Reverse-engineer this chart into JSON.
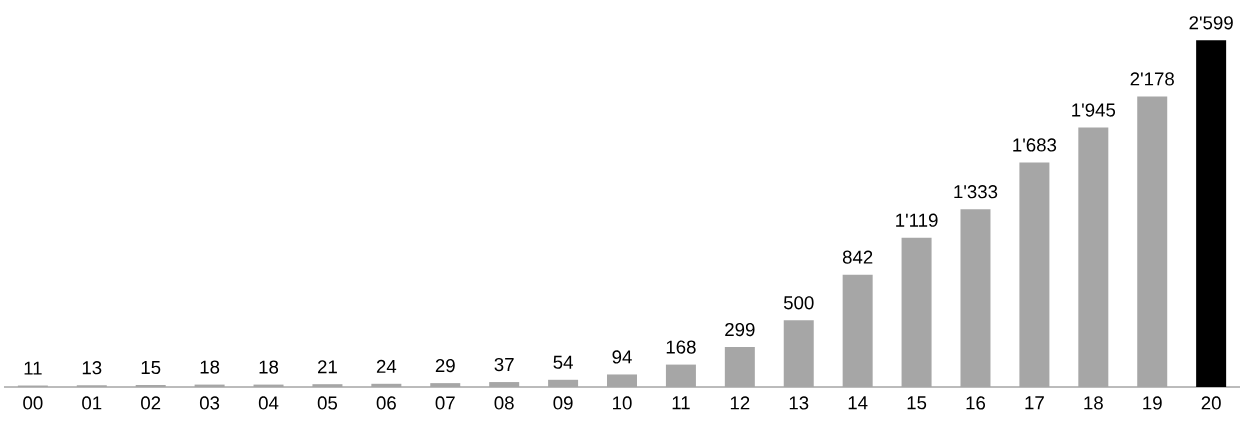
{
  "chart_data": {
    "type": "bar",
    "categories": [
      "00",
      "01",
      "02",
      "03",
      "04",
      "05",
      "06",
      "07",
      "08",
      "09",
      "10",
      "11",
      "12",
      "13",
      "14",
      "15",
      "16",
      "17",
      "18",
      "19",
      "20"
    ],
    "values": [
      11,
      13,
      15,
      18,
      18,
      21,
      24,
      29,
      37,
      54,
      94,
      168,
      299,
      500,
      842,
      1119,
      1333,
      1683,
      1945,
      2178,
      2599
    ],
    "colors": [
      "#a6a6a6",
      "#a6a6a6",
      "#a6a6a6",
      "#a6a6a6",
      "#a6a6a6",
      "#a6a6a6",
      "#a6a6a6",
      "#a6a6a6",
      "#a6a6a6",
      "#a6a6a6",
      "#a6a6a6",
      "#a6a6a6",
      "#a6a6a6",
      "#a6a6a6",
      "#a6a6a6",
      "#a6a6a6",
      "#a6a6a6",
      "#a6a6a6",
      "#a6a6a6",
      "#a6a6a6",
      "#000000"
    ],
    "value_labels": [
      "11",
      "13",
      "15",
      "18",
      "18",
      "21",
      "24",
      "29",
      "37",
      "54",
      "94",
      "168",
      "299",
      "500",
      "842",
      "1'119",
      "1'333",
      "1'683",
      "1'945",
      "2'178",
      "2'599"
    ]
  }
}
